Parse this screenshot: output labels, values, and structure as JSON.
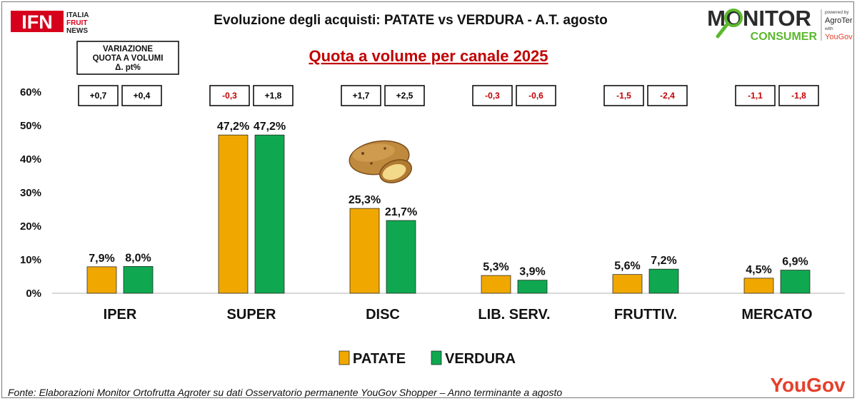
{
  "header": {
    "title": "Evoluzione degli acquisti: PATATE vs VERDURA  - A.T. agosto",
    "subtitle": "Quota a volume per canale 2025"
  },
  "logos": {
    "ifn": {
      "main": "IFN",
      "line1": "ITALIA",
      "line2": "FRUIT",
      "line3": "NEWS"
    },
    "monitor": {
      "line1": "MONITOR",
      "line2": "CONSUMER",
      "powered": "powered by",
      "agroter": "AgroTer",
      "with": "with",
      "yougov": "YouGov"
    },
    "yougov_footer": "YouGov"
  },
  "variation_note": {
    "line1": "VARIAZIONE",
    "line2": "QUOTA A VOLUMI",
    "line3": "Δ. pt%"
  },
  "colors": {
    "patate": "#f0a800",
    "verdura": "#0fa850",
    "positive": "#000000",
    "negative": "#c00000"
  },
  "chart_data": {
    "type": "bar",
    "categories": [
      "IPER",
      "SUPER",
      "DISC",
      "LIB. SERV.",
      "FRUTTIV.",
      "MERCATO"
    ],
    "series": [
      {
        "name": "PATATE",
        "values": [
          7.9,
          47.2,
          25.3,
          5.3,
          5.6,
          4.5
        ],
        "labels": [
          "7,9%",
          "47,2%",
          "25,3%",
          "5,3%",
          "5,6%",
          "4,5%"
        ]
      },
      {
        "name": "VERDURA",
        "values": [
          8.0,
          47.2,
          21.7,
          3.9,
          7.2,
          6.9
        ],
        "labels": [
          "8,0%",
          "47,2%",
          "21,7%",
          "3,9%",
          "7,2%",
          "6,9%"
        ]
      }
    ],
    "variations": {
      "PATATE": [
        "+0,7",
        "-0,3",
        "+1,7",
        "-0,3",
        "-1,5",
        "-1,1"
      ],
      "VERDURA": [
        "+0,4",
        "+1,8",
        "+2,5",
        "-0,6",
        "-2,4",
        "-1,8"
      ]
    },
    "yticks": [
      "0%",
      "10%",
      "20%",
      "30%",
      "40%",
      "50%",
      "60%"
    ],
    "ylim": [
      0,
      60
    ],
    "legend": [
      "PATATE",
      "VERDURA"
    ]
  },
  "footer": {
    "source": "Fonte: Elaborazioni Monitor Ortofrutta Agroter su dati Osservatorio permanente YouGov Shopper  – Anno terminante a agosto"
  }
}
